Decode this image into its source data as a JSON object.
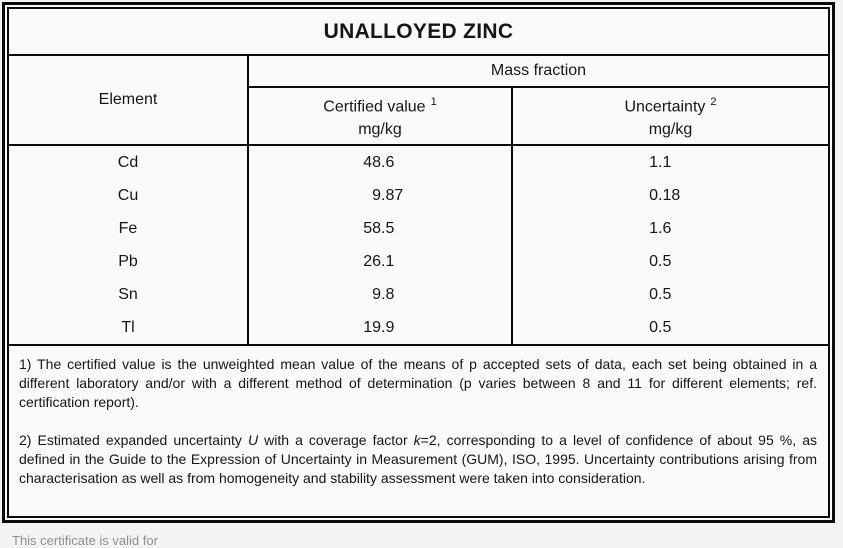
{
  "title": "UNALLOYED ZINC",
  "table": {
    "element_header": "Element",
    "mass_fraction_header": "Mass fraction",
    "certified_col": {
      "label": "Certified value",
      "footnote_ref": "1",
      "unit": "mg/kg"
    },
    "uncertainty_col": {
      "label": "Uncertainty",
      "footnote_ref": "2",
      "unit": "mg/kg"
    },
    "rows": [
      {
        "element": "Cd",
        "certified_value": "48.6",
        "uncertainty": "1.1"
      },
      {
        "element": "Cu",
        "certified_value": "9.87",
        "uncertainty": "0.18"
      },
      {
        "element": "Fe",
        "certified_value": "58.5",
        "uncertainty": "1.6"
      },
      {
        "element": "Pb",
        "certified_value": "26.1",
        "uncertainty": "0.5"
      },
      {
        "element": "Sn",
        "certified_value": "9.8",
        "uncertainty": "0.5"
      },
      {
        "element": "Tl",
        "certified_value": "19.9",
        "uncertainty": "0.5"
      }
    ]
  },
  "footnotes": {
    "note1": "1) The certified value is the unweighted mean value of the means of p accepted sets of data, each set being obtained in a different laboratory and/or with a different method of determination (p varies between 8 and 11 for different elements; ref. certification report).",
    "note2_parts": [
      {
        "text": "2) Estimated expanded uncertainty "
      },
      {
        "text": "U",
        "italic": true
      },
      {
        "text": " with a coverage factor "
      },
      {
        "text": "k",
        "italic": true
      },
      {
        "text": "=2, corresponding to a level of confidence of about 95 %, as defined in the Guide to the Expression of Uncertainty in Measurement (GUM), ISO, 1995. Uncertainty contributions arising from characterisation as well as from homogeneity and stability assessment were taken into consideration."
      }
    ]
  },
  "footer": {
    "clipped_text": "This certificate is valid for"
  }
}
